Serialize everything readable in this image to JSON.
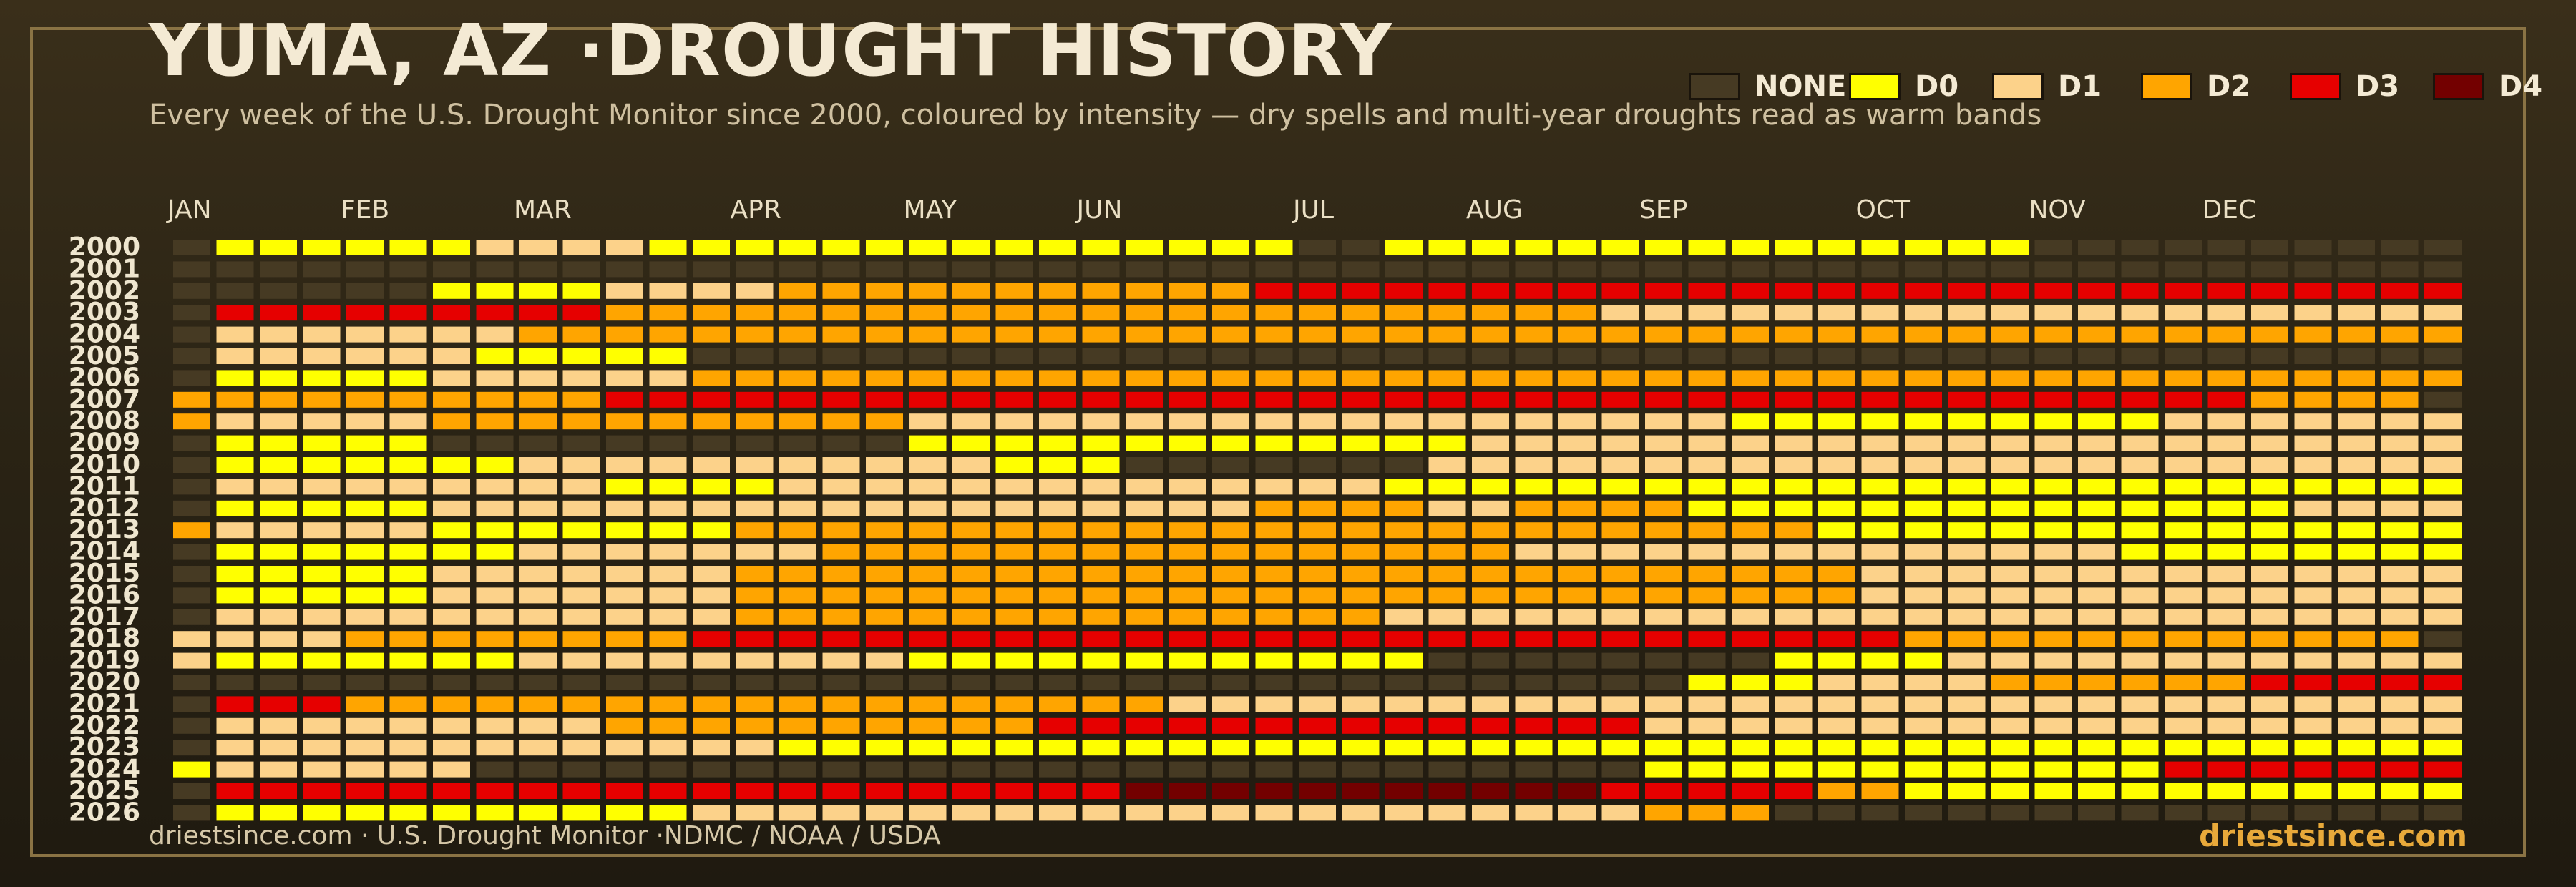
{
  "title": "YUMA, AZ ·DROUGHT HISTORY",
  "subtitle": "Every week of the U.S. Drought Monitor since 2000, coloured by intensity — dry spells and multi-year droughts read as warm bands",
  "legend": [
    {
      "label": "NONE",
      "level": 0
    },
    {
      "label": "D0",
      "level": 1
    },
    {
      "label": "D1",
      "level": 2
    },
    {
      "label": "D2",
      "level": 3
    },
    {
      "label": "D3",
      "level": 4
    },
    {
      "label": "D4",
      "level": 5
    }
  ],
  "footer": {
    "source": "driestsince.com  · U.S. Drought Monitor ·NDMC / NOAA / USDA",
    "brand": "driestsince.com"
  },
  "colors": {
    "levels": [
      "#463a23",
      "#ffff00",
      "#fcd28a",
      "#ffa500",
      "#e60000",
      "#730000"
    ],
    "month_label": "#eadfc4",
    "year_label": "#efe6cf"
  },
  "chart_data": {
    "type": "heatmap",
    "title": "YUMA, AZ ·DROUGHT HISTORY",
    "xlabel": "",
    "ylabel": "",
    "month_labels": [
      {
        "label": "JAN",
        "week": 0
      },
      {
        "label": "FEB",
        "week": 4
      },
      {
        "label": "MAR",
        "week": 8
      },
      {
        "label": "APR",
        "week": 13
      },
      {
        "label": "MAY",
        "week": 17
      },
      {
        "label": "JUN",
        "week": 21
      },
      {
        "label": "JUL",
        "week": 26
      },
      {
        "label": "AUG",
        "week": 30
      },
      {
        "label": "SEP",
        "week": 34
      },
      {
        "label": "OCT",
        "week": 39
      },
      {
        "label": "NOV",
        "week": 43
      },
      {
        "label": "DEC",
        "week": 47
      }
    ],
    "weeks_per_year": 53,
    "levels": [
      "NONE",
      "D0",
      "D1",
      "D2",
      "D3",
      "D4"
    ],
    "years": [
      "2000",
      "2001",
      "2002",
      "2003",
      "2004",
      "2005",
      "2006",
      "2007",
      "2008",
      "2009",
      "2010",
      "2011",
      "2012",
      "2013",
      "2014",
      "2015",
      "2016",
      "2017",
      "2018",
      "2019",
      "2020",
      "2021",
      "2022",
      "2023",
      "2024",
      "2025",
      "2026"
    ],
    "runs": [
      [
        [
          1,
          0
        ],
        [
          6,
          1
        ],
        [
          4,
          2
        ],
        [
          15,
          1
        ],
        [
          2,
          0
        ],
        [
          15,
          1
        ],
        [
          10,
          0
        ]
      ],
      [
        [
          53,
          0
        ]
      ],
      [
        [
          6,
          0
        ],
        [
          4,
          1
        ],
        [
          4,
          2
        ],
        [
          11,
          3
        ],
        [
          28,
          4
        ]
      ],
      [
        [
          1,
          0
        ],
        [
          9,
          4
        ],
        [
          23,
          3
        ],
        [
          20,
          2
        ]
      ],
      [
        [
          1,
          0
        ],
        [
          7,
          2
        ],
        [
          19,
          3
        ],
        [
          26,
          3
        ]
      ],
      [
        [
          1,
          0
        ],
        [
          6,
          2
        ],
        [
          5,
          1
        ],
        [
          41,
          0
        ]
      ],
      [
        [
          1,
          0
        ],
        [
          5,
          1
        ],
        [
          6,
          2
        ],
        [
          41,
          3
        ]
      ],
      [
        [
          10,
          3
        ],
        [
          38,
          4
        ],
        [
          4,
          3
        ],
        [
          1,
          0
        ]
      ],
      [
        [
          1,
          3
        ],
        [
          5,
          2
        ],
        [
          11,
          3
        ],
        [
          19,
          2
        ],
        [
          10,
          1
        ],
        [
          7,
          2
        ]
      ],
      [
        [
          1,
          0
        ],
        [
          5,
          1
        ],
        [
          11,
          0
        ],
        [
          13,
          1
        ],
        [
          23,
          2
        ]
      ],
      [
        [
          1,
          0
        ],
        [
          7,
          1
        ],
        [
          11,
          2
        ],
        [
          3,
          1
        ],
        [
          7,
          0
        ],
        [
          24,
          2
        ]
      ],
      [
        [
          1,
          0
        ],
        [
          9,
          2
        ],
        [
          4,
          1
        ],
        [
          14,
          2
        ],
        [
          25,
          1
        ]
      ],
      [
        [
          1,
          0
        ],
        [
          5,
          1
        ],
        [
          19,
          2
        ],
        [
          4,
          3
        ],
        [
          2,
          2
        ],
        [
          4,
          3
        ],
        [
          14,
          1
        ],
        [
          4,
          2
        ]
      ],
      [
        [
          1,
          3
        ],
        [
          5,
          2
        ],
        [
          7,
          1
        ],
        [
          25,
          3
        ],
        [
          15,
          1
        ]
      ],
      [
        [
          1,
          0
        ],
        [
          7,
          1
        ],
        [
          7,
          2
        ],
        [
          16,
          3
        ],
        [
          14,
          2
        ],
        [
          8,
          1
        ]
      ],
      [
        [
          1,
          0
        ],
        [
          5,
          1
        ],
        [
          7,
          2
        ],
        [
          26,
          3
        ],
        [
          14,
          2
        ]
      ],
      [
        [
          1,
          0
        ],
        [
          5,
          1
        ],
        [
          7,
          2
        ],
        [
          26,
          3
        ],
        [
          14,
          2
        ]
      ],
      [
        [
          1,
          0
        ],
        [
          12,
          2
        ],
        [
          15,
          3
        ],
        [
          25,
          2
        ]
      ],
      [
        [
          1,
          2
        ],
        [
          3,
          2
        ],
        [
          8,
          3
        ],
        [
          28,
          4
        ],
        [
          12,
          3
        ],
        [
          1,
          0
        ]
      ],
      [
        [
          1,
          2
        ],
        [
          7,
          1
        ],
        [
          9,
          2
        ],
        [
          6,
          1
        ],
        [
          6,
          1
        ],
        [
          4,
          0
        ],
        [
          4,
          0
        ],
        [
          4,
          1
        ],
        [
          12,
          2
        ]
      ],
      [
        [
          1,
          0
        ],
        [
          34,
          0
        ],
        [
          3,
          1
        ],
        [
          4,
          2
        ],
        [
          6,
          3
        ],
        [
          5,
          4
        ]
      ],
      [
        [
          1,
          0
        ],
        [
          3,
          4
        ],
        [
          19,
          3
        ],
        [
          11,
          2
        ],
        [
          19,
          2
        ]
      ],
      [
        [
          1,
          0
        ],
        [
          9,
          2
        ],
        [
          10,
          3
        ],
        [
          14,
          4
        ],
        [
          19,
          2
        ]
      ],
      [
        [
          1,
          0
        ],
        [
          13,
          2
        ],
        [
          39,
          1
        ]
      ],
      [
        [
          1,
          1
        ],
        [
          6,
          2
        ],
        [
          27,
          0
        ],
        [
          12,
          1
        ],
        [
          7,
          4
        ]
      ],
      [
        [
          1,
          0
        ],
        [
          4,
          4
        ],
        [
          17,
          4
        ],
        [
          11,
          5
        ],
        [
          5,
          4
        ],
        [
          2,
          3
        ],
        [
          13,
          1
        ]
      ],
      [
        [
          1,
          0
        ],
        [
          11,
          1
        ],
        [
          22,
          2
        ],
        [
          3,
          3
        ],
        [
          16,
          0
        ]
      ]
    ]
  }
}
